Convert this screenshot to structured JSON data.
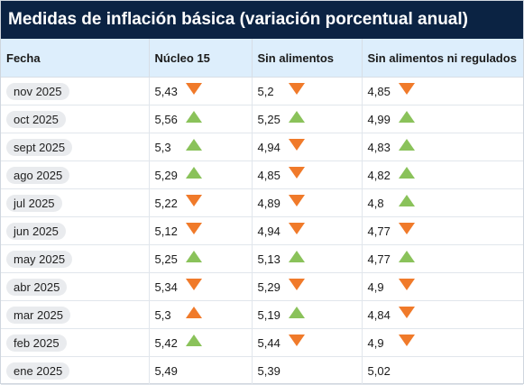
{
  "title": "Medidas de inflación básica (variación porcentual anual)",
  "columns": [
    "Fecha",
    "Núcleo 15",
    "Sin alimentos",
    "Sin alimentos ni regulados"
  ],
  "colors": {
    "header_bg": "#0b2343",
    "up": "#8ac25a",
    "down": "#f07a2a"
  },
  "rows": [
    {
      "fecha": "nov 2025",
      "n15": "5,43",
      "n15_dir": "down",
      "sa": "5,2",
      "sa_dir": "down",
      "sanr": "4,85",
      "sanr_dir": "down"
    },
    {
      "fecha": "oct 2025",
      "n15": "5,56",
      "n15_dir": "up",
      "sa": "5,25",
      "sa_dir": "up",
      "sanr": "4,99",
      "sanr_dir": "up"
    },
    {
      "fecha": "sept 2025",
      "n15": "5,3",
      "n15_dir": "up",
      "sa": "4,94",
      "sa_dir": "down",
      "sanr": "4,83",
      "sanr_dir": "up"
    },
    {
      "fecha": "ago 2025",
      "n15": "5,29",
      "n15_dir": "up",
      "sa": "4,85",
      "sa_dir": "down",
      "sanr": "4,82",
      "sanr_dir": "up"
    },
    {
      "fecha": "jul 2025",
      "n15": "5,22",
      "n15_dir": "down",
      "sa": "4,89",
      "sa_dir": "down",
      "sanr": "4,8",
      "sanr_dir": "up"
    },
    {
      "fecha": "jun 2025",
      "n15": "5,12",
      "n15_dir": "down",
      "sa": "4,94",
      "sa_dir": "down",
      "sanr": "4,77",
      "sanr_dir": "down"
    },
    {
      "fecha": "may 2025",
      "n15": "5,25",
      "n15_dir": "up",
      "sa": "5,13",
      "sa_dir": "up",
      "sanr": "4,77",
      "sanr_dir": "up"
    },
    {
      "fecha": "abr 2025",
      "n15": "5,34",
      "n15_dir": "down",
      "sa": "5,29",
      "sa_dir": "down",
      "sanr": "4,9",
      "sanr_dir": "down"
    },
    {
      "fecha": "mar 2025",
      "n15": "5,3",
      "n15_dir": "up-orange",
      "sa": "5,19",
      "sa_dir": "up",
      "sanr": "4,84",
      "sanr_dir": "down"
    },
    {
      "fecha": "feb 2025",
      "n15": "5,42",
      "n15_dir": "up",
      "sa": "5,44",
      "sa_dir": "down",
      "sanr": "4,9",
      "sanr_dir": "down"
    },
    {
      "fecha": "ene 2025",
      "n15": "5,49",
      "n15_dir": "",
      "sa": "5,39",
      "sa_dir": "",
      "sanr": "5,02",
      "sanr_dir": ""
    }
  ]
}
